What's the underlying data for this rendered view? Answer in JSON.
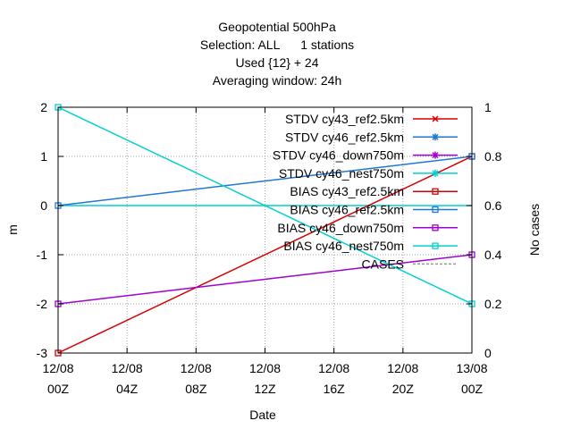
{
  "chart_data": {
    "type": "line",
    "title_lines": [
      "Geopotential 500hPa",
      "Selection: ALL      1 stations",
      "Used {12} + 24",
      "Averaging window: 24h"
    ],
    "xlabel": "Date",
    "ylabel": "m",
    "y2label": "No cases",
    "x_ticks": [
      {
        "x": 0,
        "line1": "12/08",
        "line2": "00Z"
      },
      {
        "x": 4,
        "line1": "12/08",
        "line2": "04Z"
      },
      {
        "x": 8,
        "line1": "12/08",
        "line2": "08Z"
      },
      {
        "x": 12,
        "line1": "12/08",
        "line2": "12Z"
      },
      {
        "x": 16,
        "line1": "12/08",
        "line2": "16Z"
      },
      {
        "x": 20,
        "line1": "12/08",
        "line2": "20Z"
      },
      {
        "x": 24,
        "line1": "13/08",
        "line2": "00Z"
      }
    ],
    "xlim": [
      0,
      24
    ],
    "ylim": [
      -3,
      2
    ],
    "y2lim": [
      0,
      1
    ],
    "y_ticks": [
      2,
      1,
      0,
      -1,
      -2,
      -3
    ],
    "y2_ticks": [
      1,
      0.8,
      0.6,
      0.4,
      0.2,
      0
    ],
    "grid": true,
    "legend_position": "top-right",
    "series": [
      {
        "name": "STDV cy43_ref2.5km",
        "color": "#d40000",
        "marker": "x",
        "axis": "y",
        "dash": false,
        "x": [
          0,
          24
        ],
        "values": [
          null,
          null
        ]
      },
      {
        "name": "STDV cy46_ref2.5km",
        "color": "#1e78d2",
        "marker": "star",
        "axis": "y",
        "dash": false,
        "x": [
          0,
          24
        ],
        "values": [
          null,
          null
        ]
      },
      {
        "name": "STDV cy46_down750m",
        "color": "#a000d0",
        "marker": "star",
        "axis": "y",
        "dash": false,
        "x": [
          0,
          24
        ],
        "values": [
          null,
          null
        ]
      },
      {
        "name": "STDV cy46_nest750m",
        "color": "#00d0d0",
        "marker": "star",
        "axis": "y",
        "dash": false,
        "x": [
          0,
          24
        ],
        "values": [
          null,
          null
        ]
      },
      {
        "name": "BIAS cy43_ref2.5km",
        "color": "#d40000",
        "marker": "square",
        "axis": "y",
        "dash": false,
        "x": [
          0,
          24
        ],
        "values": [
          -3,
          1
        ]
      },
      {
        "name": "BIAS cy46_ref2.5km",
        "color": "#1e78d2",
        "marker": "square",
        "axis": "y",
        "dash": false,
        "x": [
          0,
          24
        ],
        "values": [
          0,
          1
        ]
      },
      {
        "name": "BIAS cy46_down750m",
        "color": "#a000d0",
        "marker": "square",
        "axis": "y",
        "dash": false,
        "x": [
          0,
          24
        ],
        "values": [
          -2,
          -1
        ]
      },
      {
        "name": "BIAS cy46_nest750m",
        "color": "#00d0d0",
        "marker": "square",
        "axis": "y",
        "dash": false,
        "x": [
          0,
          24
        ],
        "values": [
          2,
          -2
        ]
      },
      {
        "name": "CASES",
        "color": "#999999",
        "marker": "none",
        "axis": "y2",
        "dash": true,
        "x": [
          0,
          24
        ],
        "values": [
          null,
          null
        ]
      }
    ],
    "zero_line_color": "#00d0d0"
  }
}
